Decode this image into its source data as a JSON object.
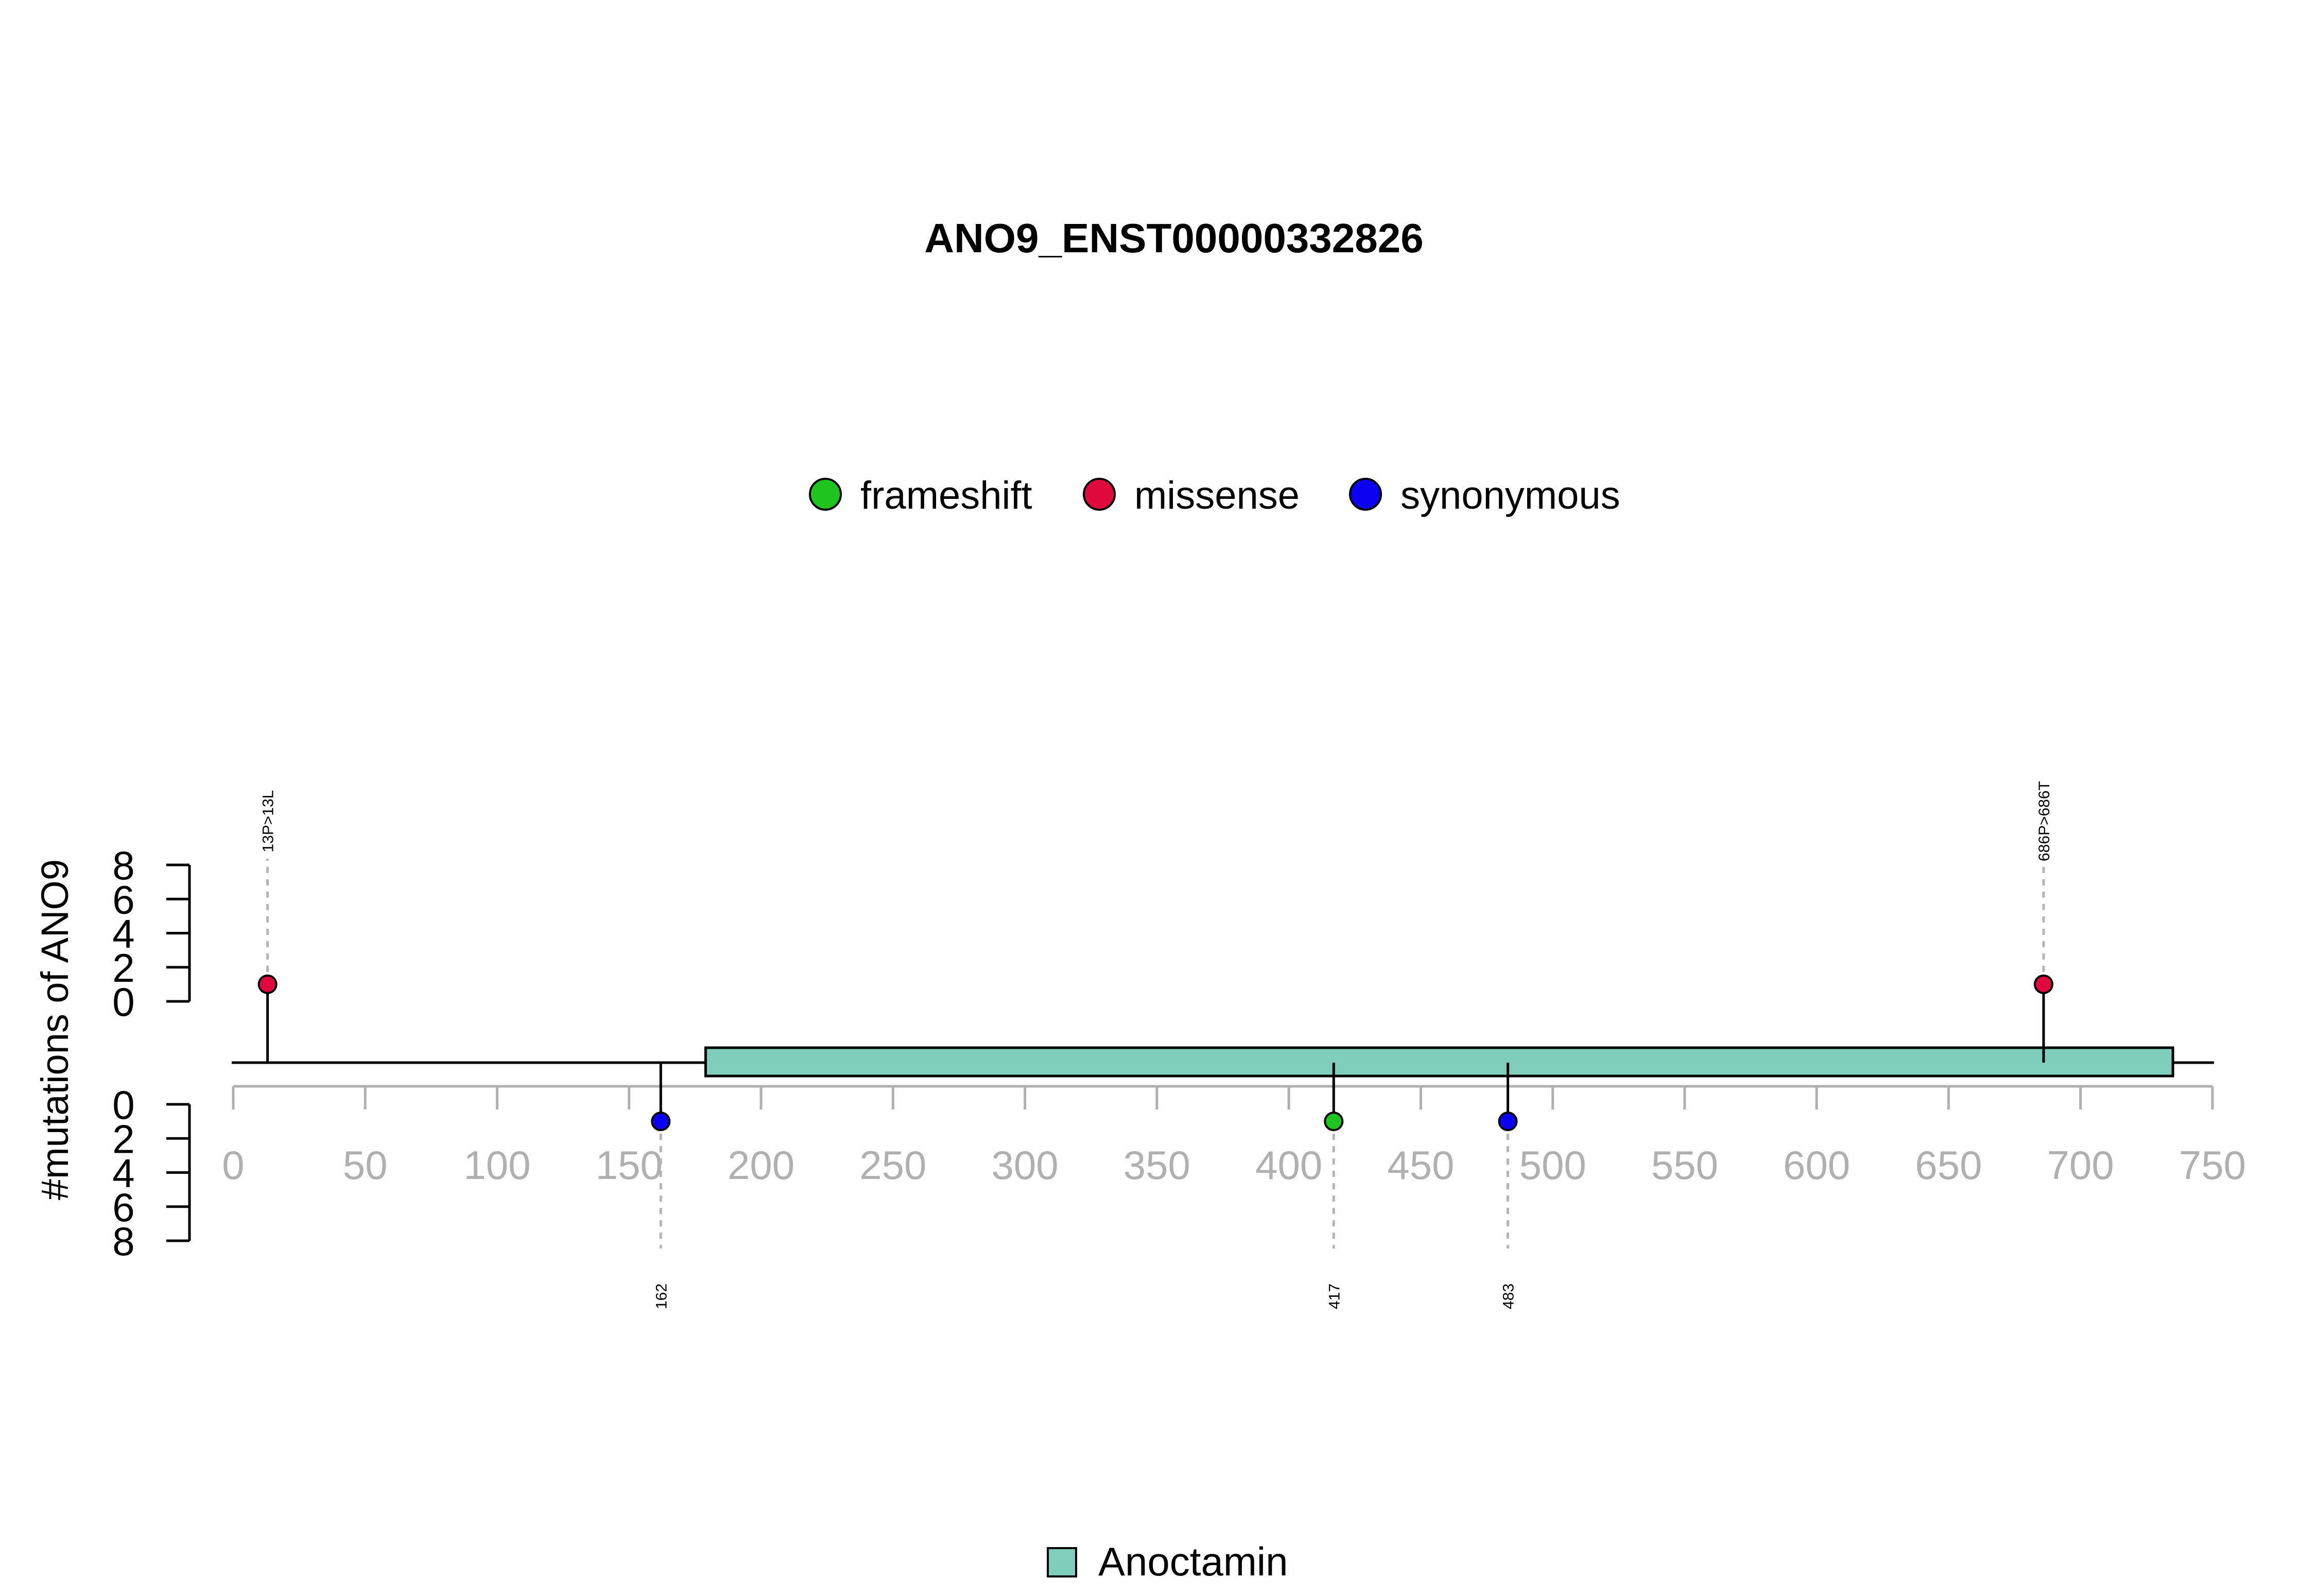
{
  "chart_data": {
    "type": "lollipop",
    "title": "ANO9_ENST00000332826",
    "ylabel": "#mutations of ANO9",
    "xlim": [
      0,
      750
    ],
    "x_ticks": [
      0,
      50,
      100,
      150,
      200,
      250,
      300,
      350,
      400,
      450,
      500,
      550,
      600,
      650,
      700,
      750
    ],
    "ylim": [
      0,
      8
    ],
    "y_ticks": [
      0,
      2,
      4,
      6,
      8
    ],
    "protein_length": 750,
    "legend": [
      {
        "label": "frameshift",
        "color": "#1fc41f"
      },
      {
        "label": "missense",
        "color": "#e0093e"
      },
      {
        "label": "synonymous",
        "color": "#0b00f2"
      }
    ],
    "domains": [
      {
        "name": "Anoctamin",
        "start": 179,
        "end": 735,
        "color": "#7fcdbb"
      }
    ],
    "mutations": [
      {
        "position": 13,
        "label": "13P>13L",
        "type": "missense",
        "count": 1,
        "side": "top"
      },
      {
        "position": 686,
        "label": "686P>686T",
        "type": "missense",
        "count": 1,
        "side": "top"
      },
      {
        "position": 162,
        "label": "162",
        "type": "synonymous",
        "count": 1,
        "side": "bottom"
      },
      {
        "position": 417,
        "label": "417",
        "type": "frameshift",
        "count": 1,
        "side": "bottom"
      },
      {
        "position": 483,
        "label": "483",
        "type": "synonymous",
        "count": 1,
        "side": "bottom"
      }
    ]
  }
}
